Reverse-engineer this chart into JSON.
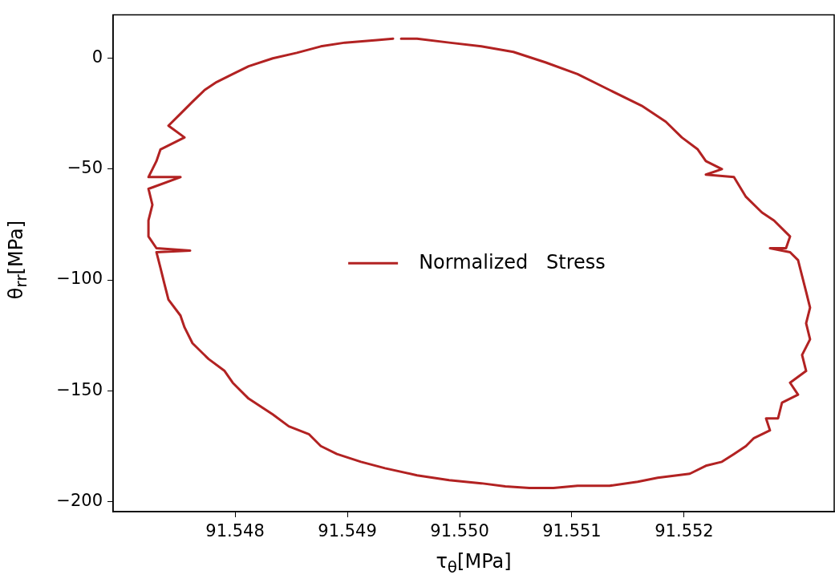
{
  "chart_data": {
    "type": "line",
    "xlabel": "τ$_{θ}$[MPa]",
    "ylabel": "θ$_{rr}$[MPa]",
    "legend": "center",
    "grid": false,
    "marker": "none",
    "line_style": "solid",
    "xlim": [
      91.546914,
      91.553336
    ],
    "ylim": [
      -204.6,
      19.6
    ],
    "xticks": [
      {
        "value": 91.548,
        "label": "91.548"
      },
      {
        "value": 91.549,
        "label": "91.549"
      },
      {
        "value": 91.55,
        "label": "91.550"
      },
      {
        "value": 91.551,
        "label": "91.551"
      },
      {
        "value": 91.552,
        "label": "91.552"
      }
    ],
    "yticks": [
      {
        "value": -200,
        "label": "−200"
      },
      {
        "value": -150,
        "label": "−150"
      },
      {
        "value": -100,
        "label": "−100"
      },
      {
        "value": -50,
        "label": "−50"
      },
      {
        "value": 0,
        "label": "0"
      }
    ],
    "series": [
      {
        "name": "Normalized   Stress",
        "color": "#b22222",
        "x": [
          91.549479,
          91.549621,
          91.549907,
          91.550193,
          91.550479,
          91.550764,
          91.55105,
          91.551336,
          91.551621,
          91.551836,
          91.551979,
          91.552121,
          91.552193,
          91.552336,
          91.552193,
          91.552443,
          91.55255,
          91.552693,
          91.5528,
          91.552943,
          91.552907,
          91.552764,
          91.552943,
          91.553014,
          91.55305,
          91.553086,
          91.553121,
          91.553086,
          91.553121,
          91.55305,
          91.553086,
          91.552943,
          91.553014,
          91.552871,
          91.552836,
          91.552729,
          91.552764,
          91.552621,
          91.55255,
          91.552443,
          91.552336,
          91.552193,
          91.55205,
          91.551764,
          91.551586,
          91.551336,
          91.55105,
          91.550836,
          91.550621,
          91.550407,
          91.550193,
          91.549907,
          91.549621,
          91.549336,
          91.549121,
          91.548907,
          91.548764,
          91.548657,
          91.548479,
          91.548336,
          91.548121,
          91.547979,
          91.547907,
          91.547764,
          91.547621,
          91.54755,
          91.547514,
          91.547407,
          91.547371,
          91.547336,
          91.5473,
          91.5476,
          91.5473,
          91.547229,
          91.547229,
          91.547264,
          91.547229,
          91.547514,
          91.547229,
          91.5473,
          91.547336,
          91.54755,
          91.547407,
          91.547514,
          91.547621,
          91.547729,
          91.547836,
          91.547979,
          91.548121,
          91.548336,
          91.54855,
          91.548764,
          91.548979,
          91.549264,
          91.549407
        ],
        "values": [
          8.9,
          8.9,
          7.1,
          5.4,
          2.9,
          -1.8,
          -7.1,
          -14.3,
          -21.4,
          -28.6,
          -35.7,
          -41.1,
          -46.4,
          -50.0,
          -52.5,
          -53.6,
          -62.5,
          -69.6,
          -73.2,
          -80.4,
          -85.7,
          -85.7,
          -87.5,
          -91.1,
          -98.2,
          -105.4,
          -112.5,
          -119.6,
          -126.8,
          -133.9,
          -141.1,
          -146.4,
          -151.8,
          -155.4,
          -162.5,
          -162.5,
          -167.9,
          -171.4,
          -175.0,
          -178.6,
          -182.1,
          -183.9,
          -187.5,
          -189.3,
          -191.1,
          -192.9,
          -192.9,
          -193.9,
          -193.9,
          -193.2,
          -191.8,
          -190.4,
          -188.2,
          -185.0,
          -182.1,
          -178.6,
          -175.0,
          -169.6,
          -166.1,
          -160.7,
          -153.6,
          -146.4,
          -141.1,
          -135.7,
          -128.6,
          -121.4,
          -116.1,
          -108.9,
          -101.8,
          -94.6,
          -87.5,
          -86.8,
          -85.7,
          -80.4,
          -73.2,
          -66.1,
          -58.9,
          -53.6,
          -53.6,
          -46.4,
          -41.1,
          -35.7,
          -30.4,
          -25.0,
          -19.6,
          -14.3,
          -10.7,
          -7.1,
          -3.6,
          0,
          2.5,
          5.4,
          7.1,
          8.2,
          8.9
        ]
      }
    ]
  }
}
